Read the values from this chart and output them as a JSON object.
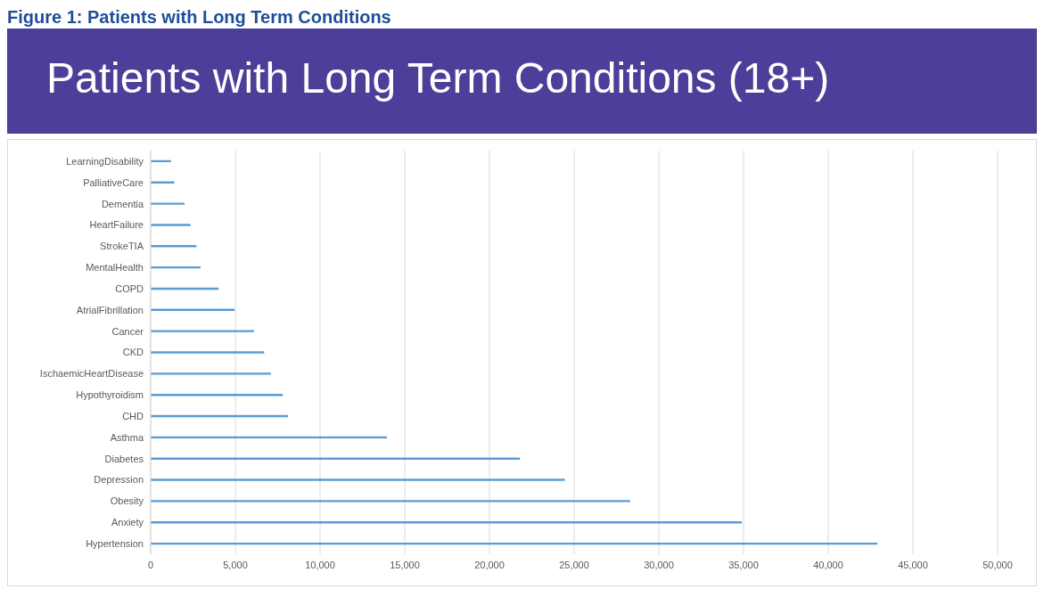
{
  "chart_data": {
    "type": "bar",
    "orientation": "horizontal",
    "title": "Figure 1: Patients with Long Term Conditions",
    "subtitle": "Patients with Long Term Conditions (18+)",
    "categories": [
      "LearningDisability",
      "PalliativeCare",
      "Dementia",
      "HeartFailure",
      "StrokeTIA",
      "MentalHealth",
      "COPD",
      "AtrialFibrillation",
      "Cancer",
      "CKD",
      "IschaemicHeartDisease",
      "Hypothyroidism",
      "CHD",
      "Asthma",
      "Diabetes",
      "Depression",
      "Obesity",
      "Anxiety",
      "Hypertension"
    ],
    "values": [
      1200,
      1400,
      2000,
      2350,
      2700,
      2950,
      4000,
      4950,
      6100,
      6700,
      7100,
      7800,
      8100,
      13950,
      21800,
      24450,
      28300,
      34900,
      42900
    ],
    "color": "#5b9bd5",
    "xlim": [
      0,
      50000
    ],
    "xticks": [
      0,
      {
        "value": 5000,
        "label": "5,000"
      },
      {
        "value": 10000,
        "label": "10,000"
      },
      {
        "value": 15000,
        "label": "15,000"
      },
      {
        "value": 20000,
        "label": "20,000"
      },
      {
        "value": 25000,
        "label": "25,000"
      },
      {
        "value": 30000,
        "label": "30,000"
      },
      {
        "value": 35000,
        "label": "35,000"
      },
      {
        "value": 40000,
        "label": "40,000"
      },
      {
        "value": 45000,
        "label": "45,000"
      },
      {
        "value": 50000,
        "label": "50,000"
      }
    ],
    "grid": "x"
  }
}
